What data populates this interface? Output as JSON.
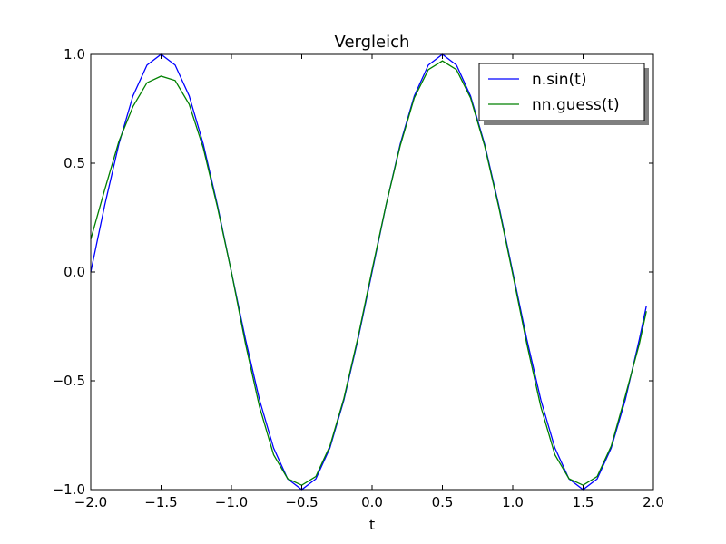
{
  "chart_data": {
    "type": "line",
    "title": "Vergleich",
    "xlabel": "t",
    "ylabel": "",
    "xlim": [
      -2.0,
      2.0
    ],
    "ylim": [
      -1.0,
      1.0
    ],
    "xticks": [
      "−2.0",
      "−1.5",
      "−1.0",
      "−0.5",
      "0.0",
      "0.5",
      "1.0",
      "1.5",
      "2.0"
    ],
    "xtick_values": [
      -2.0,
      -1.5,
      -1.0,
      -0.5,
      0.0,
      0.5,
      1.0,
      1.5,
      2.0
    ],
    "yticks": [
      "−1.0",
      "−0.5",
      "0.0",
      "0.5",
      "1.0"
    ],
    "ytick_values": [
      -1.0,
      -0.5,
      0.0,
      0.5,
      1.0
    ],
    "grid": false,
    "legend_position": "top-right",
    "x": [
      -2.0,
      -1.9,
      -1.8,
      -1.7,
      -1.6,
      -1.5,
      -1.4,
      -1.3,
      -1.2,
      -1.1,
      -1.0,
      -0.9,
      -0.8,
      -0.7,
      -0.6,
      -0.5,
      -0.4,
      -0.3,
      -0.2,
      -0.1,
      0.0,
      0.1,
      0.2,
      0.3,
      0.4,
      0.5,
      0.6,
      0.7,
      0.8,
      0.9,
      1.0,
      1.1,
      1.2,
      1.3,
      1.4,
      1.5,
      1.6,
      1.7,
      1.8,
      1.9,
      1.95
    ],
    "series": [
      {
        "name": "n.sin(t)",
        "color": "#0000ff",
        "values": [
          0.0,
          0.309,
          0.588,
          0.809,
          0.951,
          1.0,
          0.951,
          0.809,
          0.588,
          0.309,
          0.0,
          -0.309,
          -0.588,
          -0.809,
          -0.951,
          -1.0,
          -0.951,
          -0.809,
          -0.588,
          -0.309,
          0.0,
          0.309,
          0.588,
          0.809,
          0.951,
          1.0,
          0.951,
          0.809,
          0.588,
          0.309,
          0.0,
          -0.309,
          -0.588,
          -0.809,
          -0.951,
          -1.0,
          -0.951,
          -0.809,
          -0.588,
          -0.309,
          -0.156
        ]
      },
      {
        "name": "nn.guess(t)",
        "color": "#008000",
        "values": [
          0.15,
          0.38,
          0.6,
          0.76,
          0.87,
          0.9,
          0.88,
          0.77,
          0.57,
          0.3,
          0.0,
          -0.33,
          -0.62,
          -0.84,
          -0.95,
          -0.98,
          -0.94,
          -0.8,
          -0.58,
          -0.3,
          0.01,
          0.31,
          0.58,
          0.8,
          0.93,
          0.97,
          0.93,
          0.8,
          0.58,
          0.3,
          -0.01,
          -0.33,
          -0.62,
          -0.84,
          -0.95,
          -0.98,
          -0.94,
          -0.8,
          -0.57,
          -0.33,
          -0.18
        ]
      }
    ]
  }
}
